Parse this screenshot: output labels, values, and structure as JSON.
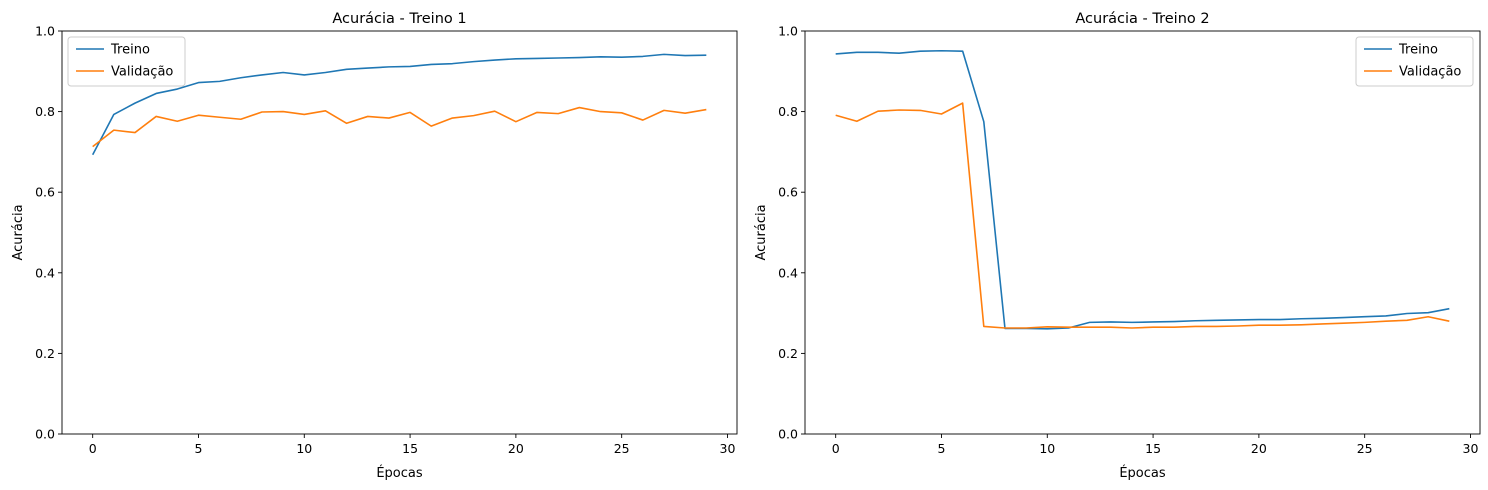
{
  "chart_data": [
    {
      "type": "line",
      "title": "Acurácia - Treino 1",
      "xlabel": "Épocas",
      "ylabel": "Acurácia",
      "xlim": [
        -1.45,
        30.45
      ],
      "ylim": [
        0,
        1
      ],
      "xticks": [
        0,
        5,
        10,
        15,
        20,
        25,
        30
      ],
      "xtick_labels": [
        "0",
        "5",
        "10",
        "15",
        "20",
        "25",
        "30"
      ],
      "yticks": [
        0,
        0.2,
        0.4,
        0.6,
        0.8,
        1.0
      ],
      "ytick_labels": [
        "0.0",
        "0.2",
        "0.4",
        "0.6",
        "0.8",
        "1.0"
      ],
      "legend_position": "upper-left",
      "x": [
        0,
        1,
        2,
        3,
        4,
        5,
        6,
        7,
        8,
        9,
        10,
        11,
        12,
        13,
        14,
        15,
        16,
        17,
        18,
        19,
        20,
        21,
        22,
        23,
        24,
        25,
        26,
        27,
        28,
        29
      ],
      "series": [
        {
          "name": "Treino",
          "color": "#1f77b4",
          "values": [
            0.693,
            0.793,
            0.821,
            0.845,
            0.856,
            0.872,
            0.875,
            0.884,
            0.891,
            0.897,
            0.891,
            0.897,
            0.905,
            0.908,
            0.911,
            0.912,
            0.917,
            0.919,
            0.924,
            0.928,
            0.931,
            0.932,
            0.933,
            0.934,
            0.936,
            0.935,
            0.937,
            0.942,
            0.939,
            0.94
          ]
        },
        {
          "name": "Validação",
          "color": "#ff7f0e",
          "values": [
            0.713,
            0.754,
            0.748,
            0.788,
            0.776,
            0.791,
            0.786,
            0.781,
            0.799,
            0.8,
            0.793,
            0.802,
            0.771,
            0.788,
            0.784,
            0.798,
            0.764,
            0.784,
            0.79,
            0.801,
            0.775,
            0.798,
            0.795,
            0.81,
            0.8,
            0.797,
            0.779,
            0.803,
            0.796,
            0.805
          ]
        }
      ]
    },
    {
      "type": "line",
      "title": "Acurácia - Treino 2",
      "xlabel": "Épocas",
      "ylabel": "Acurácia",
      "xlim": [
        -1.45,
        30.45
      ],
      "ylim": [
        0,
        1
      ],
      "xticks": [
        0,
        5,
        10,
        15,
        20,
        25,
        30
      ],
      "xtick_labels": [
        "0",
        "5",
        "10",
        "15",
        "20",
        "25",
        "30"
      ],
      "yticks": [
        0,
        0.2,
        0.4,
        0.6,
        0.8,
        1.0
      ],
      "ytick_labels": [
        "0.0",
        "0.2",
        "0.4",
        "0.6",
        "0.8",
        "1.0"
      ],
      "legend_position": "upper-right",
      "x": [
        0,
        1,
        2,
        3,
        4,
        5,
        6,
        7,
        8,
        9,
        10,
        11,
        12,
        13,
        14,
        15,
        16,
        17,
        18,
        19,
        20,
        21,
        22,
        23,
        24,
        25,
        26,
        27,
        28,
        29
      ],
      "series": [
        {
          "name": "Treino",
          "color": "#1f77b4",
          "values": [
            0.943,
            0.947,
            0.947,
            0.945,
            0.95,
            0.951,
            0.95,
            0.775,
            0.262,
            0.262,
            0.261,
            0.263,
            0.277,
            0.278,
            0.277,
            0.278,
            0.279,
            0.281,
            0.282,
            0.283,
            0.284,
            0.284,
            0.286,
            0.287,
            0.289,
            0.291,
            0.293,
            0.299,
            0.301,
            0.311
          ]
        },
        {
          "name": "Validação",
          "color": "#ff7f0e",
          "values": [
            0.791,
            0.776,
            0.801,
            0.804,
            0.803,
            0.794,
            0.821,
            0.267,
            0.263,
            0.263,
            0.266,
            0.265,
            0.265,
            0.265,
            0.263,
            0.265,
            0.265,
            0.267,
            0.267,
            0.268,
            0.27,
            0.27,
            0.271,
            0.273,
            0.275,
            0.277,
            0.28,
            0.282,
            0.291,
            0.28
          ]
        }
      ]
    }
  ]
}
